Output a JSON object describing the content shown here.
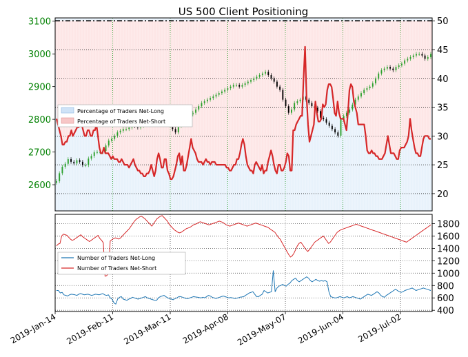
{
  "title": "US 500 Client Positioning",
  "colors": {
    "price_axis": "#008000",
    "short_red": "#d62728",
    "long_blue": "#1f77b4",
    "short_fill": "#fde6e6",
    "long_fill": "#e8f2fb",
    "candle_up": "#2ca02c",
    "candle_down": "#000000",
    "grid": "#222222"
  },
  "chart_data": [
    {
      "type": "line",
      "panel": "top",
      "title": "US 500 Client Positioning",
      "left_axis": {
        "ticks": [
          2600,
          2700,
          2800,
          2900,
          3000,
          3100
        ],
        "range": [
          2520,
          3110
        ]
      },
      "right_axis": {
        "ticks": [
          20,
          25,
          30,
          35,
          40,
          45,
          50
        ],
        "range": [
          17,
          50.5
        ]
      },
      "x_ticks": [
        "2019-Jan-14",
        "2019-Feb-11",
        "2019-Mar-11",
        "2019-Apr-08",
        "2019-May-07",
        "2019-Jun-04",
        "2019-Jul-02"
      ],
      "legend": {
        "position": "upper-left",
        "entries": [
          "Percentage of Traders Net-Long",
          "Percentage of Traders Net-Short"
        ]
      },
      "reference_line": 50,
      "series": [
        {
          "name": "Percentage of Traders Net-Short",
          "axis": "right",
          "values": [
            33,
            32,
            31,
            30,
            28.5,
            28.5,
            29,
            29,
            30,
            30,
            31,
            30,
            30.5,
            31,
            31.5,
            31.5,
            32,
            32,
            31,
            30,
            30,
            31,
            31,
            30,
            30,
            31,
            31,
            32,
            30,
            28,
            27,
            27,
            28,
            27,
            27,
            27,
            26.5,
            26,
            26.5,
            26,
            26,
            26,
            25.5,
            25.5,
            26,
            25.5,
            25,
            25,
            25,
            24.5,
            25,
            25.5,
            26,
            25,
            24.5,
            24,
            24,
            23.5,
            23.5,
            23,
            23,
            23.5,
            23.5,
            24,
            25,
            24,
            23,
            24,
            26,
            27,
            26,
            24.5,
            24.5,
            26,
            26,
            24,
            23.5,
            22.5,
            22.5,
            23,
            24,
            25,
            26.5,
            27,
            25,
            26.5,
            24,
            24,
            25,
            26.5,
            28,
            29.5,
            28,
            27.5,
            27,
            26,
            25.5,
            25.5,
            25.5,
            25,
            25.5,
            26,
            25.5,
            25.5,
            25,
            25.5,
            25.5,
            25.5,
            25,
            25,
            25,
            25,
            25,
            25,
            25,
            24.5,
            24.5,
            24,
            24,
            24.5,
            25,
            25,
            26,
            26,
            27,
            28.5,
            29.5,
            28.5,
            26.5,
            25,
            24.5,
            24,
            24,
            23.5,
            25,
            25.5,
            25,
            24.5,
            24,
            25,
            23.5,
            24,
            24,
            25.5,
            26.5,
            27.5,
            26.5,
            25,
            24,
            23.5,
            25,
            25,
            24,
            24,
            24.5,
            25.5,
            27,
            26.5,
            24,
            24,
            31,
            31,
            32,
            32.5,
            33,
            33.5,
            33.5,
            40,
            45.5,
            37,
            32,
            29,
            30,
            31,
            32,
            36,
            34,
            32.5,
            32.5,
            33,
            35.5,
            35,
            35.5,
            38,
            39,
            39,
            38.5,
            36.5,
            34,
            33.5,
            36,
            34,
            33,
            33,
            33,
            32,
            31,
            34,
            38,
            39,
            38.5,
            36,
            35,
            34,
            32,
            32,
            32,
            32,
            32,
            30,
            27.5,
            27,
            27,
            27.5,
            27,
            27,
            26.5,
            26.5,
            26,
            26,
            26,
            26.5,
            27,
            28.5,
            30,
            28.5,
            27,
            27,
            27,
            26.5,
            26,
            26,
            27.5,
            28,
            28,
            28,
            28.5,
            29,
            30,
            33,
            31,
            29.5,
            28,
            27,
            27,
            26.5,
            26.5,
            28,
            29.5,
            30,
            30,
            30,
            29.5,
            29.5
          ]
        },
        {
          "name": "US 500 price",
          "axis": "left",
          "values": [
            2611,
            2635,
            2655,
            2664,
            2678,
            2670,
            2665,
            2675,
            2670,
            2660,
            2660,
            2680,
            2688,
            2699,
            2700,
            2700,
            2703,
            2720,
            2735,
            2740,
            2750,
            2760,
            2765,
            2770,
            2770,
            2775,
            2780,
            2779,
            2775,
            2780,
            2785,
            2790,
            2800,
            2805,
            2800,
            2793,
            2790,
            2795,
            2800,
            2784,
            2770,
            2760,
            2780,
            2790,
            2800,
            2810,
            2815,
            2820,
            2830,
            2840,
            2850,
            2855,
            2860,
            2865,
            2870,
            2875,
            2880,
            2885,
            2890,
            2895,
            2900,
            2905,
            2905,
            2900,
            2905,
            2910,
            2915,
            2920,
            2925,
            2930,
            2935,
            2940,
            2945,
            2935,
            2925,
            2915,
            2900,
            2890,
            2860,
            2840,
            2820,
            2830,
            2850,
            2855,
            2860,
            2870,
            2860,
            2850,
            2840,
            2835,
            2825,
            2805,
            2800,
            2790,
            2780,
            2770,
            2760,
            2750,
            2800,
            2810,
            2820,
            2830,
            2845,
            2860,
            2870,
            2880,
            2890,
            2895,
            2900,
            2910,
            2925,
            2940,
            2950,
            2955,
            2960,
            2955,
            2950,
            2960,
            2965,
            2970,
            2980,
            2985,
            2990,
            2995,
            3000,
            3000,
            2995,
            2985,
            2990,
            3000
          ],
          "note_candles": true
        }
      ]
    },
    {
      "type": "line",
      "panel": "bottom",
      "y_ticks": [
        400,
        600,
        800,
        1000,
        1200,
        1400,
        1600,
        1800
      ],
      "ylim": [
        380,
        1950
      ],
      "legend": {
        "position": "center-left",
        "entries": [
          "Number of Traders Net-Long",
          "Number of Traders Net-Short"
        ]
      },
      "series": [
        {
          "name": "Number of Traders Net-Long",
          "values": [
            720,
            720,
            680,
            690,
            650,
            640,
            630,
            650,
            660,
            655,
            650,
            640,
            660,
            670,
            660,
            650,
            655,
            660,
            650,
            640,
            650,
            660,
            655,
            650,
            660,
            670,
            650,
            640,
            650,
            600,
            580,
            520,
            500,
            580,
            610,
            620,
            580,
            570,
            560,
            580,
            590,
            610,
            600,
            590,
            580,
            590,
            600,
            610,
            620,
            600,
            590,
            580,
            570,
            560,
            560,
            600,
            620,
            630,
            640,
            620,
            600,
            590,
            580,
            570,
            590,
            600,
            620,
            620,
            610,
            600,
            590,
            590,
            600,
            610,
            620,
            615,
            610,
            605,
            600,
            610,
            600,
            620,
            640,
            630,
            610,
            600,
            590,
            600,
            610,
            620,
            630,
            620,
            610,
            600,
            605,
            600,
            590,
            595,
            600,
            610,
            615,
            620,
            640,
            660,
            680,
            690,
            700,
            660,
            620,
            620,
            640,
            660,
            720,
            700,
            680,
            690,
            700,
            1040,
            700,
            760,
            790,
            800,
            820,
            800,
            790,
            820,
            840,
            880,
            900,
            920,
            880,
            860,
            880,
            900,
            920,
            940,
            920,
            880,
            860,
            880,
            900,
            880,
            870,
            880,
            870,
            880,
            860,
            700,
            620,
            610,
            600,
            600,
            610,
            620,
            610,
            600,
            610,
            620,
            600,
            610,
            620,
            610,
            600,
            590,
            580,
            600,
            620,
            640,
            660,
            650,
            640,
            660,
            680,
            700,
            680,
            640,
            620,
            610,
            640,
            660,
            680,
            700,
            720,
            740,
            720,
            700,
            690,
            700,
            720,
            730,
            740,
            750,
            760,
            740,
            720,
            730,
            740,
            750,
            760,
            750,
            740,
            730,
            720
          ]
        },
        {
          "name": "Number of Traders Net-Short",
          "values": [
            1440,
            1470,
            1480,
            1600,
            1630,
            1620,
            1610,
            1580,
            1550,
            1530,
            1540,
            1560,
            1580,
            1600,
            1620,
            1590,
            1570,
            1550,
            1530,
            1510,
            1530,
            1550,
            1570,
            1590,
            1610,
            1560,
            1530,
            1490,
            950,
            960,
            1000,
            1520,
            1540,
            1560,
            1570,
            1560,
            1550,
            1570,
            1600,
            1630,
            1660,
            1690,
            1720,
            1760,
            1800,
            1840,
            1870,
            1890,
            1910,
            1920,
            1900,
            1880,
            1850,
            1820,
            1790,
            1760,
            1800,
            1840,
            1880,
            1900,
            1920,
            1930,
            1900,
            1870,
            1840,
            1790,
            1760,
            1730,
            1700,
            1680,
            1660,
            1650,
            1660,
            1680,
            1700,
            1720,
            1730,
            1740,
            1760,
            1780,
            1790,
            1800,
            1820,
            1830,
            1820,
            1810,
            1800,
            1790,
            1780,
            1790,
            1800,
            1810,
            1820,
            1830,
            1840,
            1830,
            1820,
            1800,
            1780,
            1770,
            1760,
            1770,
            1780,
            1790,
            1800,
            1810,
            1800,
            1790,
            1780,
            1770,
            1760,
            1770,
            1780,
            1790,
            1800,
            1810,
            1800,
            1790,
            1780,
            1770,
            1760,
            1750,
            1740,
            1720,
            1700,
            1680,
            1660,
            1620,
            1580,
            1550,
            1500,
            1450,
            1400,
            1350,
            1300,
            1260,
            1280,
            1320,
            1380,
            1440,
            1480,
            1500,
            1460,
            1420,
            1380,
            1350,
            1380,
            1420,
            1460,
            1500,
            1520,
            1540,
            1560,
            1580,
            1600,
            1560,
            1520,
            1480,
            1500,
            1540,
            1580,
            1620,
            1660,
            1680,
            1700,
            1710,
            1720,
            1730,
            1740,
            1750,
            1760,
            1770,
            1780,
            1790,
            1780,
            1770,
            1760,
            1750,
            1740,
            1730,
            1720,
            1710,
            1700,
            1690,
            1680,
            1670,
            1660,
            1650,
            1640,
            1630,
            1620,
            1610,
            1600,
            1590,
            1580,
            1570,
            1560,
            1550,
            1540,
            1530,
            1520,
            1510,
            1500,
            1520,
            1540,
            1560,
            1580,
            1600,
            1620,
            1640,
            1660,
            1680,
            1700,
            1720,
            1740,
            1760,
            1780
          ]
        }
      ],
      "x_ticks": [
        "2019-Jan-14",
        "2019-Feb-11",
        "2019-Mar-11",
        "2019-Apr-08",
        "2019-May-07",
        "2019-Jun-04",
        "2019-Jul-02"
      ]
    }
  ]
}
